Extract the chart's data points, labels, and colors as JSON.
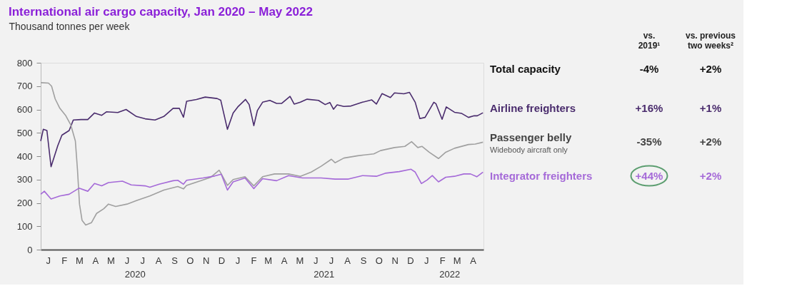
{
  "chart_data": {
    "type": "line",
    "title": "International air cargo capacity, Jan 2020 – May 2022",
    "ylabel": "Thousand tonnes per week",
    "xlim": [
      "2020-01-01",
      "2022-05-06"
    ],
    "ylim": [
      0,
      800
    ],
    "yticks": [
      0,
      100,
      200,
      300,
      400,
      500,
      600,
      700,
      800
    ],
    "xticks": [
      {
        "value": "2020-07-01",
        "label": "2020"
      },
      {
        "value": "2021-07-01",
        "label": "2021"
      },
      {
        "value": "2022-03-01",
        "label": "2022"
      }
    ],
    "series": [
      {
        "name": "Airline freighters",
        "color": "#4a2c6d",
        "x": [
          "2020-01-01",
          "2020-01-06",
          "2020-01-13",
          "2020-01-21",
          "2020-02-03",
          "2020-02-11",
          "2020-02-25",
          "2020-03-04",
          "2020-03-19",
          "2020-04-01",
          "2020-04-14",
          "2020-04-28",
          "2020-05-07",
          "2020-05-29",
          "2020-06-14",
          "2020-07-04",
          "2020-07-21",
          "2020-08-09",
          "2020-08-26",
          "2020-09-13",
          "2020-09-25",
          "2020-10-03",
          "2020-10-09",
          "2020-10-28",
          "2020-11-14",
          "2020-12-07",
          "2020-12-14",
          "2020-12-27",
          "2021-01-07",
          "2021-01-16",
          "2021-01-31",
          "2021-02-07",
          "2021-02-16",
          "2021-02-23",
          "2021-03-05",
          "2021-03-19",
          "2021-04-01",
          "2021-04-11",
          "2021-04-27",
          "2021-05-05",
          "2021-05-17",
          "2021-05-30",
          "2021-06-21",
          "2021-07-04",
          "2021-07-13",
          "2021-07-20",
          "2021-07-27",
          "2021-08-09",
          "2021-08-23",
          "2021-09-14",
          "2021-10-02",
          "2021-10-11",
          "2021-10-22",
          "2021-11-07",
          "2021-11-15",
          "2021-12-03",
          "2021-12-14",
          "2021-12-25",
          "2022-01-03",
          "2022-01-13",
          "2022-01-30",
          "2022-02-03",
          "2022-02-15",
          "2022-02-23",
          "2022-03-11",
          "2022-03-25",
          "2022-04-07",
          "2022-04-18",
          "2022-04-24",
          "2022-05-05"
        ],
        "values": [
          465,
          515,
          510,
          355,
          445,
          490,
          510,
          555,
          557,
          557,
          585,
          575,
          590,
          587,
          600,
          570,
          560,
          555,
          570,
          605,
          605,
          567,
          635,
          643,
          653,
          647,
          640,
          515,
          585,
          611,
          643,
          621,
          531,
          596,
          631,
          639,
          626,
          626,
          656,
          623,
          631,
          644,
          639,
          621,
          630,
          601,
          620,
          613,
          615,
          631,
          641,
          623,
          668,
          651,
          671,
          667,
          673,
          631,
          561,
          566,
          631,
          625,
          558,
          611,
          588,
          583,
          566,
          573,
          573,
          586
        ]
      },
      {
        "name": "Passenger belly",
        "color": "#a0a0a0",
        "x": [
          "2020-01-01",
          "2020-01-16",
          "2020-01-22",
          "2020-01-29",
          "2020-02-07",
          "2020-02-18",
          "2020-02-28",
          "2020-03-08",
          "2020-03-12",
          "2020-03-16",
          "2020-03-21",
          "2020-03-28",
          "2020-04-08",
          "2020-04-18",
          "2020-05-02",
          "2020-05-11",
          "2020-05-25",
          "2020-06-16",
          "2020-07-04",
          "2020-07-30",
          "2020-08-26",
          "2020-09-22",
          "2020-10-03",
          "2020-10-09",
          "2020-11-05",
          "2020-11-25",
          "2020-12-11",
          "2020-12-15",
          "2020-12-27",
          "2021-01-07",
          "2021-01-30",
          "2021-02-16",
          "2021-03-05",
          "2021-03-28",
          "2021-04-24",
          "2021-05-17",
          "2021-06-07",
          "2021-06-26",
          "2021-07-16",
          "2021-07-23",
          "2021-08-09",
          "2021-09-05",
          "2021-10-06",
          "2021-10-19",
          "2021-11-15",
          "2021-12-05",
          "2021-12-18",
          "2021-12-30",
          "2022-01-07",
          "2022-01-21",
          "2022-02-08",
          "2022-02-22",
          "2022-03-11",
          "2022-04-07",
          "2022-04-20",
          "2022-05-05"
        ],
        "values": [
          715,
          713,
          700,
          645,
          605,
          575,
          535,
          465,
          345,
          195,
          125,
          105,
          115,
          155,
          175,
          195,
          185,
          195,
          210,
          230,
          255,
          270,
          260,
          275,
          295,
          310,
          340,
          325,
          275,
          300,
          312,
          273,
          312,
          324,
          324,
          314,
          332,
          357,
          387,
          372,
          392,
          402,
          410,
          424,
          437,
          442,
          462,
          437,
          442,
          417,
          390,
          417,
          434,
          450,
          452,
          460
        ]
      },
      {
        "name": "Integrator freighters",
        "color": "#a56ad8",
        "x": [
          "2020-01-01",
          "2020-01-08",
          "2020-01-21",
          "2020-02-07",
          "2020-02-25",
          "2020-03-15",
          "2020-04-01",
          "2020-04-14",
          "2020-04-28",
          "2020-05-11",
          "2020-06-07",
          "2020-06-24",
          "2020-07-21",
          "2020-07-30",
          "2020-08-17",
          "2020-09-13",
          "2020-09-22",
          "2020-10-03",
          "2020-10-09",
          "2020-11-10",
          "2020-12-02",
          "2020-12-15",
          "2020-12-27",
          "2021-01-07",
          "2021-01-30",
          "2021-02-16",
          "2021-03-05",
          "2021-04-01",
          "2021-04-24",
          "2021-05-21",
          "2021-06-26",
          "2021-07-23",
          "2021-08-18",
          "2021-09-14",
          "2021-10-11",
          "2021-10-28",
          "2021-11-24",
          "2021-12-17",
          "2021-12-25",
          "2022-01-06",
          "2022-01-17",
          "2022-01-27",
          "2022-02-08",
          "2022-02-22",
          "2022-03-11",
          "2022-03-29",
          "2022-04-11",
          "2022-04-23",
          "2022-05-05"
        ],
        "values": [
          237,
          250,
          217,
          230,
          237,
          263,
          250,
          283,
          273,
          287,
          293,
          277,
          273,
          267,
          280,
          295,
          297,
          280,
          297,
          307,
          315,
          323,
          255,
          290,
          307,
          261,
          304,
          295,
          317,
          307,
          307,
          302,
          302,
          317,
          314,
          327,
          334,
          344,
          332,
          283,
          298,
          317,
          290,
          310,
          314,
          324,
          324,
          312,
          332
        ]
      }
    ],
    "annotations": [
      "vs.\n2019¹",
      "vs. previous\ntwo weeks²",
      "Total capacity",
      "-4%",
      "+2%",
      "+16%",
      "+1%",
      "-35%",
      "+2%",
      "+44%",
      "+2%",
      "Widebody aircraft only",
      "J",
      "F",
      "M",
      "A",
      "M",
      "J",
      "J",
      "A",
      "S",
      "O",
      "N",
      "D",
      "J",
      "F",
      "M",
      "A",
      "M",
      "J",
      "J",
      "A",
      "S",
      "O",
      "N",
      "D",
      "J",
      "F",
      "M",
      "A"
    ]
  }
}
